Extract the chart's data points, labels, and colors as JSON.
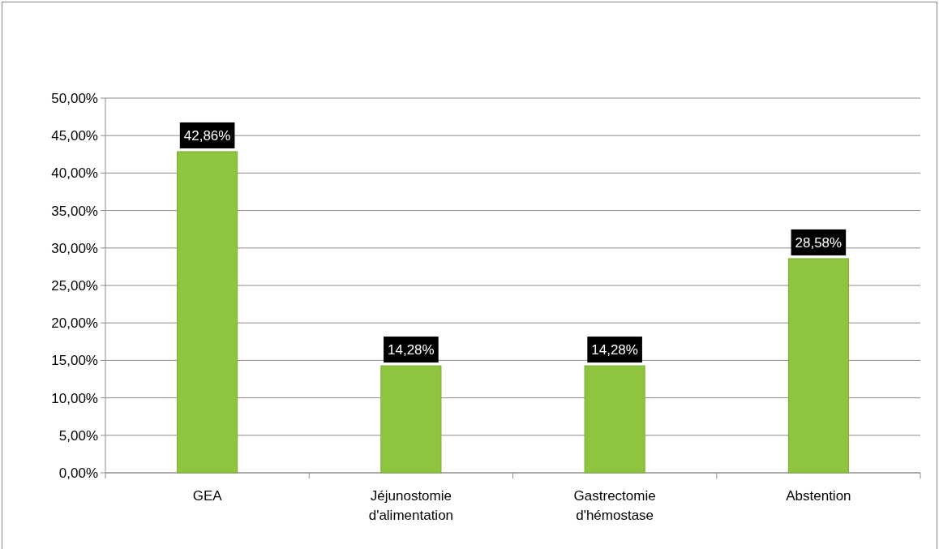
{
  "chart_data": {
    "type": "bar",
    "categories": [
      "GEA",
      "Jéjunostomie\nd'alimentation",
      "Gastrectomie\nd'hémostase",
      "Abstention"
    ],
    "values": [
      42.86,
      14.28,
      14.28,
      28.58
    ],
    "value_labels": [
      "42,86%",
      "14,28%",
      "14,28%",
      "28,58%"
    ],
    "color": "#8fc43f",
    "ylim": [
      0,
      50
    ],
    "yticks": [
      {
        "value": 0,
        "label": "0,00%"
      },
      {
        "value": 5,
        "label": "5,00%"
      },
      {
        "value": 10,
        "label": "10,00%"
      },
      {
        "value": 15,
        "label": "15,00%"
      },
      {
        "value": 20,
        "label": "20,00%"
      },
      {
        "value": 25,
        "label": "25,00%"
      },
      {
        "value": 30,
        "label": "30,00%"
      },
      {
        "value": 35,
        "label": "35,00%"
      },
      {
        "value": 40,
        "label": "40,00%"
      },
      {
        "value": 45,
        "label": "45,00%"
      },
      {
        "value": 50,
        "label": "50,00%"
      }
    ],
    "grid": "y"
  }
}
